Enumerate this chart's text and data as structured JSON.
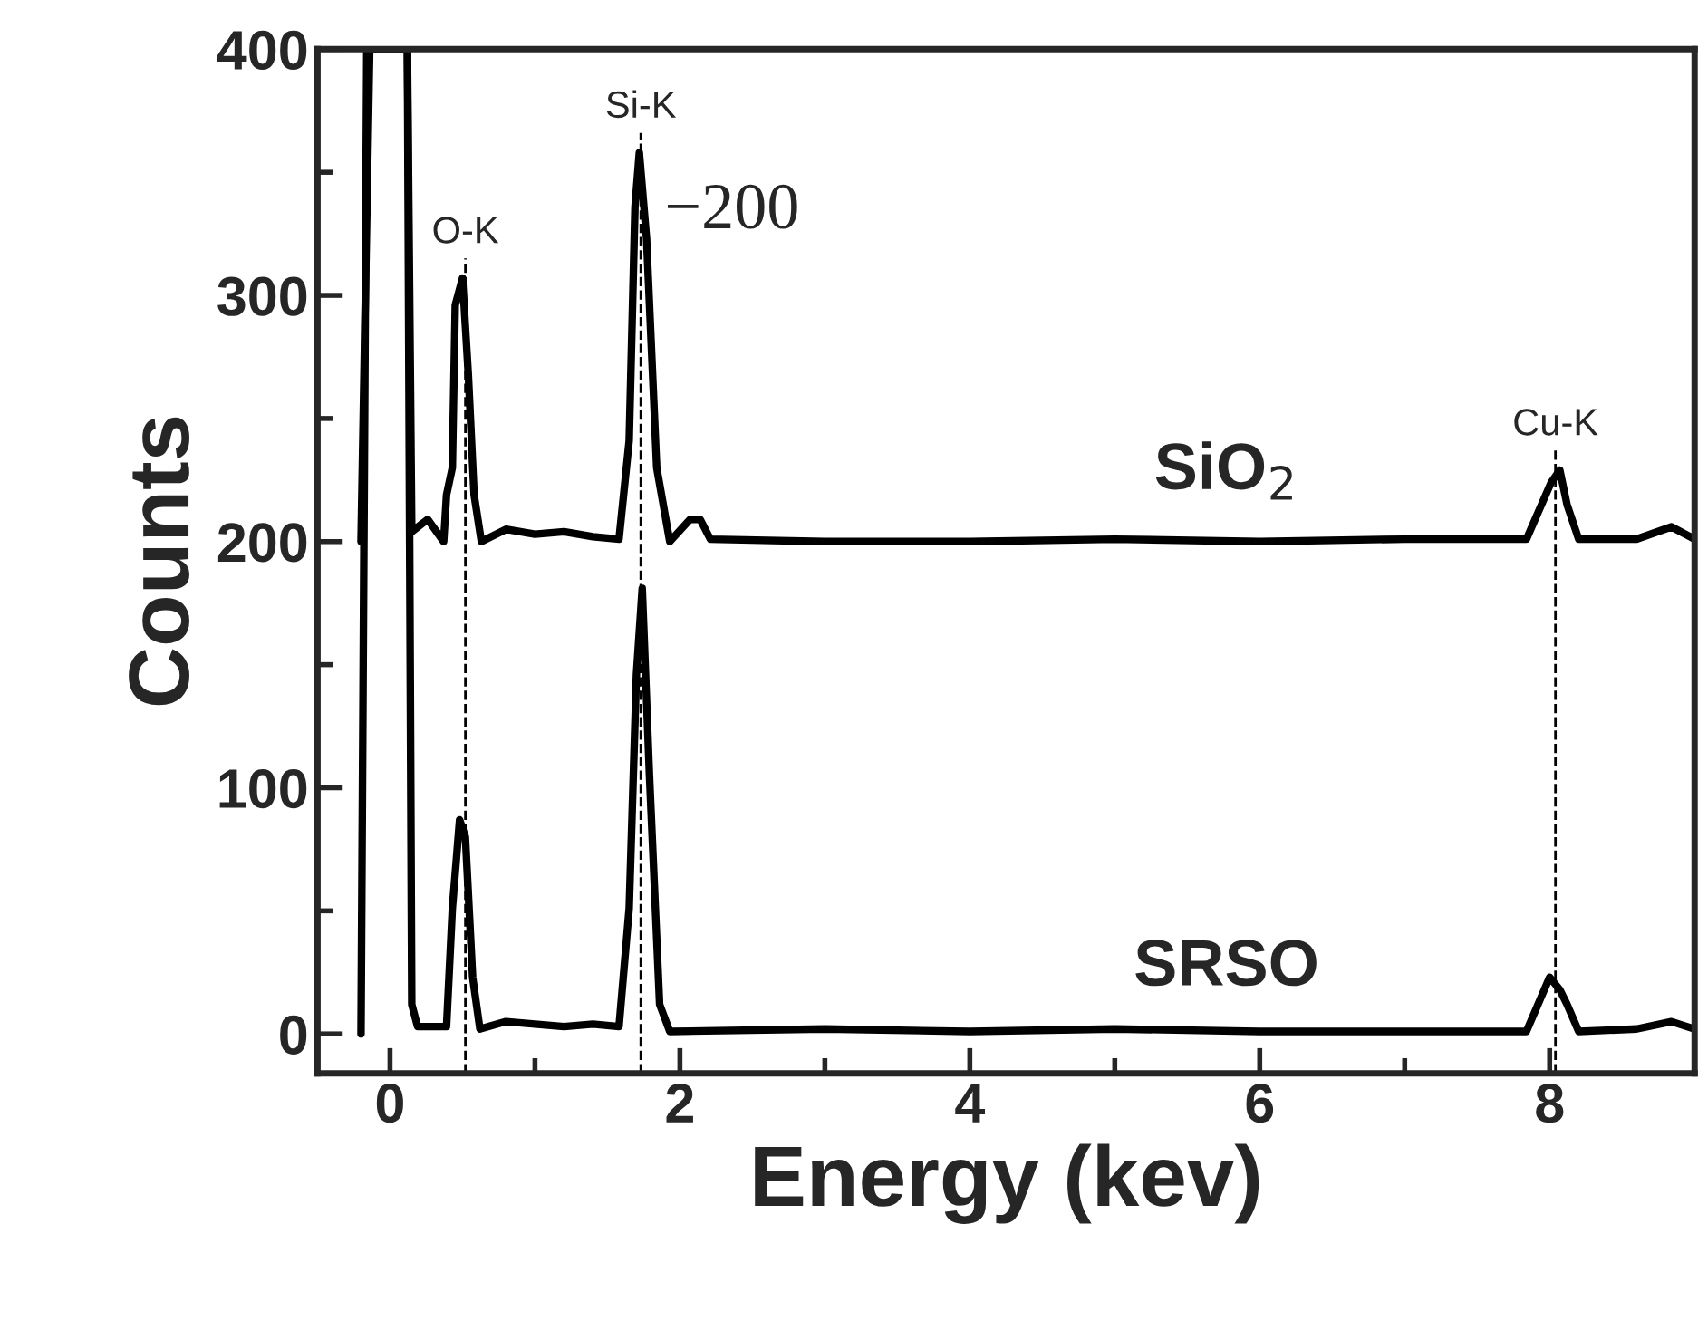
{
  "chart_data": {
    "type": "line",
    "xlabel": "Energy (kev)",
    "ylabel": "Counts",
    "xlim": [
      -0.5,
      9.0
    ],
    "ylim": [
      -16,
      400
    ],
    "xticks": [
      0,
      {
        "value": 1,
        "label": null
      },
      2,
      {
        "value": 3,
        "label": null
      },
      4,
      {
        "value": 5,
        "label": null
      },
      6,
      {
        "value": 7,
        "label": null
      },
      8
    ],
    "yticks": [
      0,
      {
        "value": 50,
        "label": null
      },
      100,
      {
        "value": 150,
        "label": null
      },
      200,
      {
        "value": 250,
        "label": null
      },
      300,
      {
        "value": 350,
        "label": null
      },
      400
    ],
    "series": [
      {
        "name": "SiO$_{2}$",
        "color": "#000000",
        "x": [
          -0.2,
          -0.14,
          0.12,
          0.15,
          0.26,
          0.37,
          0.39,
          0.43,
          0.45,
          0.5,
          0.54,
          0.58,
          0.63,
          0.8,
          1.0,
          1.2,
          1.4,
          1.58,
          1.65,
          1.69,
          1.72,
          1.77,
          1.84,
          1.93,
          2.07,
          2.14,
          2.21,
          3.0,
          4.0,
          5.0,
          6.0,
          7.0,
          7.84,
          8.01,
          8.07,
          8.12,
          8.2,
          8.6,
          8.84,
          9.0
        ],
        "values": [
          200,
          400,
          400,
          204,
          209,
          200,
          219,
          230,
          296,
          307,
          268,
          219,
          200,
          205,
          203,
          204,
          202,
          201,
          241,
          336,
          358,
          323,
          230,
          200,
          209,
          209,
          201,
          200,
          200,
          201,
          200,
          201,
          201,
          224,
          229,
          215,
          201,
          201,
          206,
          201
        ]
      },
      {
        "name": "SRSO",
        "color": "#000000",
        "x": [
          -0.2,
          -0.16,
          0.12,
          0.15,
          0.19,
          0.39,
          0.43,
          0.48,
          0.52,
          0.57,
          0.62,
          0.8,
          1.0,
          1.2,
          1.4,
          1.58,
          1.65,
          1.7,
          1.74,
          1.79,
          1.86,
          1.93,
          3.0,
          4.0,
          5.0,
          6.0,
          7.0,
          7.84,
          8.0,
          8.07,
          8.12,
          8.2,
          8.6,
          8.84,
          9.0
        ],
        "values": [
          0,
          400,
          400,
          12,
          3,
          3,
          51,
          87,
          80,
          23,
          2,
          5,
          4,
          3,
          4,
          3,
          51,
          146,
          181,
          105,
          12,
          1,
          2,
          1,
          2,
          1,
          1,
          1,
          23,
          18,
          12,
          1,
          2,
          5,
          2
        ]
      }
    ],
    "ref_lines": [
      {
        "axis": "x",
        "value": 0.52,
        "label": "O-K",
        "line_style": "dashed",
        "color": "#000000"
      },
      {
        "axis": "x",
        "value": 1.73,
        "label": "Si-K",
        "line_style": "dashed",
        "color": "#000000"
      },
      {
        "axis": "x",
        "value": 8.04,
        "label": "Cu-K",
        "line_style": "dashed",
        "color": "#000000"
      }
    ],
    "annotations": [
      "−200"
    ],
    "legend": false,
    "grid": false,
    "marker": "none",
    "line_style": "solid"
  }
}
